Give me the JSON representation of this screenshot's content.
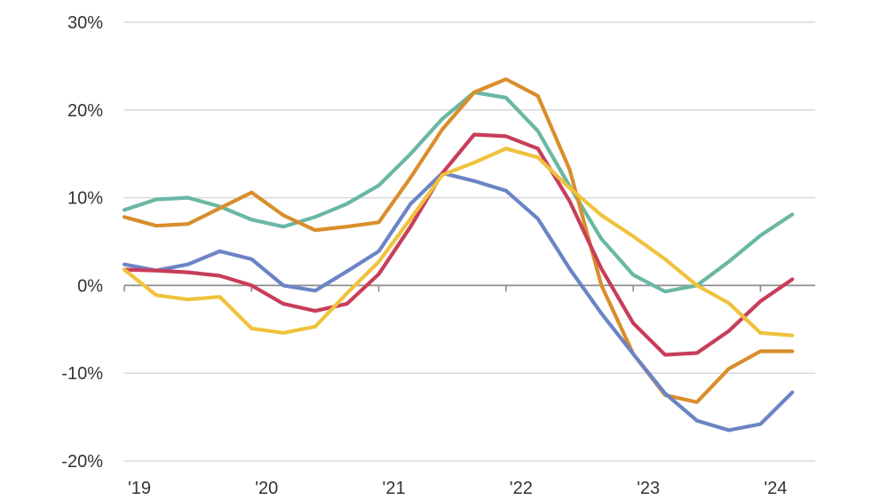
{
  "chart_data": {
    "type": "line",
    "title": "",
    "xlabel": "",
    "ylabel": "",
    "ylim": [
      -20,
      30
    ],
    "xlim": [
      2019.0,
      2024.43
    ],
    "y_ticks": [
      {
        "value": 30,
        "label": "30%"
      },
      {
        "value": 20,
        "label": "20%"
      },
      {
        "value": 10,
        "label": "10%"
      },
      {
        "value": 0,
        "label": "0%"
      },
      {
        "value": -10,
        "label": "-10%"
      },
      {
        "value": -20,
        "label": "-20%"
      }
    ],
    "x_ticks": [
      {
        "value": 2019,
        "label": "'19"
      },
      {
        "value": 2020,
        "label": "'20"
      },
      {
        "value": 2021,
        "label": "'21"
      },
      {
        "value": 2022,
        "label": "'22"
      },
      {
        "value": 2023,
        "label": "'23"
      },
      {
        "value": 2024,
        "label": "'24"
      }
    ],
    "grid": true,
    "legend": "none",
    "x": [
      2019.0,
      2019.25,
      2019.5,
      2019.75,
      2020.0,
      2020.25,
      2020.5,
      2020.75,
      2021.0,
      2021.25,
      2021.5,
      2021.75,
      2022.0,
      2022.25,
      2022.5,
      2022.75,
      2023.0,
      2023.25,
      2023.5,
      2023.75,
      2024.0,
      2024.25
    ],
    "series": [
      {
        "color": "#6ab7a4",
        "values": [
          8.6,
          9.8,
          10.0,
          9.0,
          7.5,
          6.7,
          7.8,
          9.3,
          11.4,
          15.0,
          19.0,
          22.0,
          21.4,
          17.6,
          11.3,
          5.3,
          1.2,
          -0.7,
          0.0,
          2.7,
          5.7,
          8.1
        ]
      },
      {
        "color": "#d98e2c",
        "values": [
          7.8,
          6.8,
          7.0,
          8.8,
          10.6,
          8.0,
          6.3,
          6.7,
          7.2,
          12.3,
          17.8,
          22.0,
          23.5,
          21.6,
          13.2,
          0.0,
          -7.8,
          -12.5,
          -13.3,
          -9.5,
          -7.5,
          -7.5
        ]
      },
      {
        "color": "#6b84c6",
        "values": [
          2.4,
          1.7,
          2.4,
          3.9,
          3.0,
          0.0,
          -0.6,
          1.6,
          3.9,
          9.3,
          12.8,
          11.9,
          10.8,
          7.6,
          1.9,
          -3.2,
          -7.8,
          -12.3,
          -15.4,
          -16.5,
          -15.8,
          -12.2
        ]
      },
      {
        "color": "#c83e5a",
        "values": [
          1.8,
          1.7,
          1.5,
          1.1,
          0.0,
          -2.1,
          -2.9,
          -2.1,
          1.3,
          6.7,
          12.8,
          17.2,
          17.0,
          15.6,
          9.6,
          1.9,
          -4.3,
          -7.9,
          -7.7,
          -5.2,
          -1.8,
          0.7
        ]
      },
      {
        "color": "#f0c23c",
        "values": [
          1.8,
          -1.1,
          -1.6,
          -1.3,
          -4.9,
          -5.4,
          -4.7,
          -0.9,
          2.7,
          7.6,
          12.6,
          14.0,
          15.6,
          14.6,
          11.1,
          8.0,
          5.6,
          3.0,
          0.0,
          -2.0,
          -5.4,
          -5.7
        ]
      }
    ]
  }
}
